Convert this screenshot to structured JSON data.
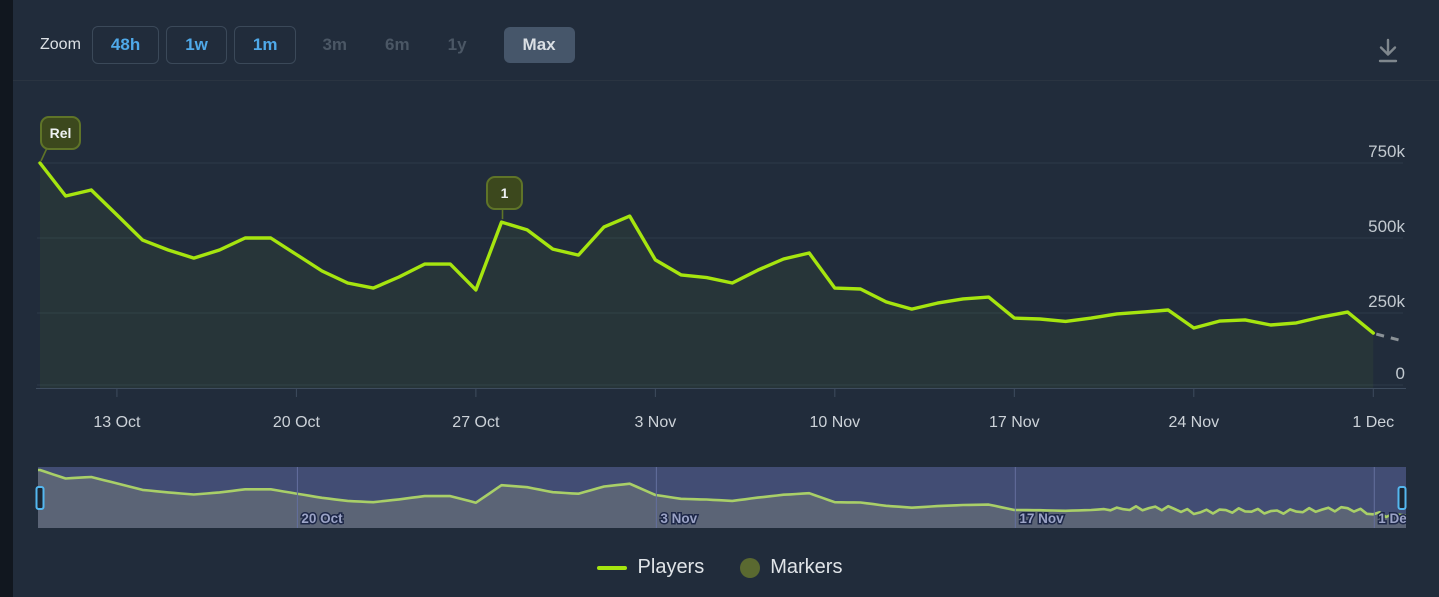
{
  "toolbar": {
    "zoom_label": "Zoom",
    "buttons": [
      {
        "label": "48h",
        "state": "enabled"
      },
      {
        "label": "1w",
        "state": "enabled"
      },
      {
        "label": "1m",
        "state": "enabled"
      },
      {
        "label": "3m",
        "state": "disabled"
      },
      {
        "label": "6m",
        "state": "disabled"
      },
      {
        "label": "1y",
        "state": "disabled"
      },
      {
        "label": "Max",
        "state": "selected"
      }
    ],
    "download_icon": "download-icon"
  },
  "colors": {
    "background": "#212c3b",
    "line": "#a6e50f",
    "area_fill": "rgba(166,229,15,0.05)",
    "dashed_tail": "#8a9196",
    "grid": "#2d3a49",
    "axis": "#3e4c5e",
    "axis_text": "#c3cad0",
    "tick_text": "#ccd2d8",
    "button_blue": "#4fa9e9",
    "pill_bg": "#3c481d",
    "pill_border": "#5f7428",
    "nav_mask_blue": "#424d74",
    "nav_bg_gray": "#5b6476",
    "nav_line": "#a9cf68",
    "nav_grid": "#646f9e",
    "nav_label": "#9ba3c6",
    "handle_border": "#54b7ef",
    "marker_legend": "#5a6930"
  },
  "chart_data": {
    "type": "line",
    "title": "",
    "xlabel": "",
    "ylabel": "",
    "unit": "players",
    "legend_position": "bottom-center",
    "y_axis": {
      "side": "right",
      "max": 830000,
      "ticks": [
        {
          "label": "750k",
          "value": 750000
        },
        {
          "label": "500k",
          "value": 500000
        },
        {
          "label": "250k",
          "value": 250000
        },
        {
          "label": "0",
          "value": 0
        }
      ]
    },
    "x_axis": {
      "ticks": [
        {
          "label": "13 Oct",
          "day_index": 3
        },
        {
          "label": "20 Oct",
          "day_index": 10
        },
        {
          "label": "27 Oct",
          "day_index": 17
        },
        {
          "label": "3 Nov",
          "day_index": 24
        },
        {
          "label": "10 Nov",
          "day_index": 31
        },
        {
          "label": "17 Nov",
          "day_index": 38
        },
        {
          "label": "24 Nov",
          "day_index": 45
        },
        {
          "label": "1 Dec",
          "day_index": 52
        }
      ]
    },
    "markers": [
      {
        "label": "Rel",
        "day_index": 0
      },
      {
        "label": "1",
        "day_index": 18
      }
    ],
    "series": [
      {
        "name": "Players",
        "points": [
          {
            "d": "10 Oct",
            "v": 750000
          },
          {
            "d": "11 Oct",
            "v": 640000
          },
          {
            "d": "12 Oct",
            "v": 660000
          },
          {
            "d": "13 Oct",
            "v": 577000
          },
          {
            "d": "14 Oct",
            "v": 493000
          },
          {
            "d": "15 Oct",
            "v": 460000
          },
          {
            "d": "16 Oct",
            "v": 433000
          },
          {
            "d": "17 Oct",
            "v": 460000
          },
          {
            "d": "18 Oct",
            "v": 500000
          },
          {
            "d": "19 Oct",
            "v": 500000
          },
          {
            "d": "20 Oct",
            "v": 445000
          },
          {
            "d": "21 Oct",
            "v": 390000
          },
          {
            "d": "22 Oct",
            "v": 350000
          },
          {
            "d": "23 Oct",
            "v": 333000
          },
          {
            "d": "24 Oct",
            "v": 370000
          },
          {
            "d": "25 Oct",
            "v": 413000
          },
          {
            "d": "26 Oct",
            "v": 413000
          },
          {
            "d": "27 Oct",
            "v": 327000
          },
          {
            "d": "28 Oct",
            "v": 553000
          },
          {
            "d": "29 Oct",
            "v": 527000
          },
          {
            "d": "30 Oct",
            "v": 463000
          },
          {
            "d": "31 Oct",
            "v": 443000
          },
          {
            "d": "1 Nov",
            "v": 537000
          },
          {
            "d": "2 Nov",
            "v": 573000
          },
          {
            "d": "3 Nov",
            "v": 427000
          },
          {
            "d": "4 Nov",
            "v": 377000
          },
          {
            "d": "5 Nov",
            "v": 368000
          },
          {
            "d": "6 Nov",
            "v": 350000
          },
          {
            "d": "7 Nov",
            "v": 393000
          },
          {
            "d": "8 Nov",
            "v": 430000
          },
          {
            "d": "9 Nov",
            "v": 450000
          },
          {
            "d": "10 Nov",
            "v": 333000
          },
          {
            "d": "11 Nov",
            "v": 330000
          },
          {
            "d": "12 Nov",
            "v": 287000
          },
          {
            "d": "13 Nov",
            "v": 263000
          },
          {
            "d": "14 Nov",
            "v": 283000
          },
          {
            "d": "15 Nov",
            "v": 297000
          },
          {
            "d": "16 Nov",
            "v": 303000
          },
          {
            "d": "17 Nov",
            "v": 233000
          },
          {
            "d": "18 Nov",
            "v": 230000
          },
          {
            "d": "19 Nov",
            "v": 222000
          },
          {
            "d": "20 Nov",
            "v": 233000
          },
          {
            "d": "21 Nov",
            "v": 247000
          },
          {
            "d": "22 Nov",
            "v": 253000
          },
          {
            "d": "23 Nov",
            "v": 260000
          },
          {
            "d": "24 Nov",
            "v": 200000
          },
          {
            "d": "25 Nov",
            "v": 223000
          },
          {
            "d": "26 Nov",
            "v": 227000
          },
          {
            "d": "27 Nov",
            "v": 210000
          },
          {
            "d": "28 Nov",
            "v": 217000
          },
          {
            "d": "29 Nov",
            "v": 237000
          },
          {
            "d": "30 Nov",
            "v": 253000
          },
          {
            "d": "1 Dec",
            "v": 183000
          },
          {
            "d": "2 Dec",
            "v": 160000,
            "partial": true
          }
        ]
      }
    ]
  },
  "navigator": {
    "ticks": [
      {
        "label": "20 Oct",
        "day_index": 10
      },
      {
        "label": "3 Nov",
        "day_index": 24
      },
      {
        "label": "17 Nov",
        "day_index": 38
      },
      {
        "label": "1 Dec",
        "day_index": 52
      }
    ]
  },
  "legend": {
    "items": [
      {
        "label": "Players",
        "swatch": "line"
      },
      {
        "label": "Markers",
        "swatch": "circle"
      }
    ]
  }
}
